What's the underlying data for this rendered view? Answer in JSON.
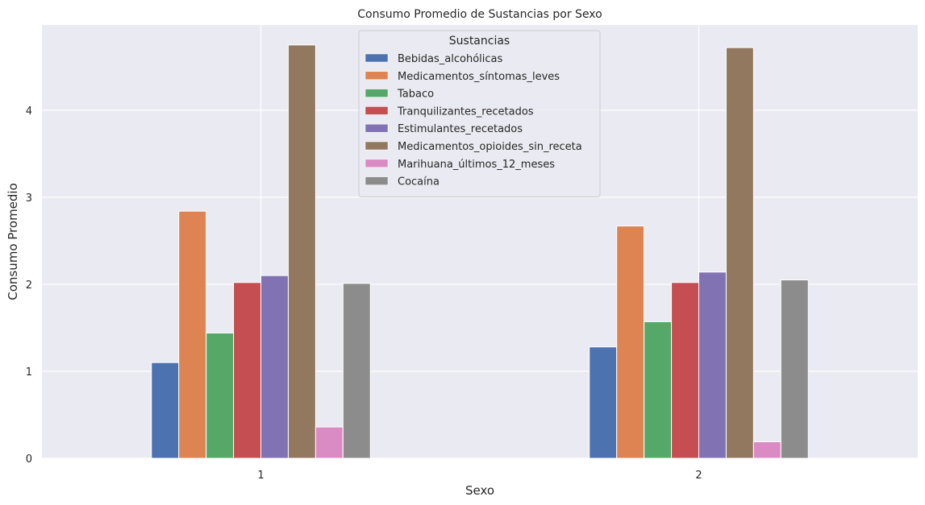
{
  "chart_data": {
    "type": "bar",
    "title": "Consumo Promedio de Sustancias por Sexo",
    "xlabel": "Sexo",
    "ylabel": "Consumo Promedio",
    "categories": [
      "1",
      "2"
    ],
    "ylim": [
      0,
      4.98
    ],
    "yticks": [
      0,
      1,
      2,
      3,
      4
    ],
    "grid": true,
    "legend": {
      "title": "Sustancias",
      "placement": "top-center"
    },
    "series": [
      {
        "name": "Bebidas_alcohólicas",
        "color": "#4c72b0",
        "values": [
          1.1,
          1.28
        ]
      },
      {
        "name": "Medicamentos_síntomas_leves",
        "color": "#dd8452",
        "values": [
          2.84,
          2.67
        ]
      },
      {
        "name": "Tabaco",
        "color": "#55a868",
        "values": [
          1.44,
          1.57
        ]
      },
      {
        "name": "Tranquilizantes_recetados",
        "color": "#c44e52",
        "values": [
          2.02,
          2.02
        ]
      },
      {
        "name": "Estimulantes_recetados",
        "color": "#8172b3",
        "values": [
          2.1,
          2.14
        ]
      },
      {
        "name": "Medicamentos_opioides_sin_receta",
        "color": "#937860",
        "values": [
          4.75,
          4.72
        ]
      },
      {
        "name": "Marihuana_últimos_12_meses",
        "color": "#da8bc3",
        "values": [
          0.36,
          0.19
        ]
      },
      {
        "name": "Cocaína",
        "color": "#8c8c8c",
        "values": [
          2.01,
          2.05
        ]
      }
    ]
  }
}
